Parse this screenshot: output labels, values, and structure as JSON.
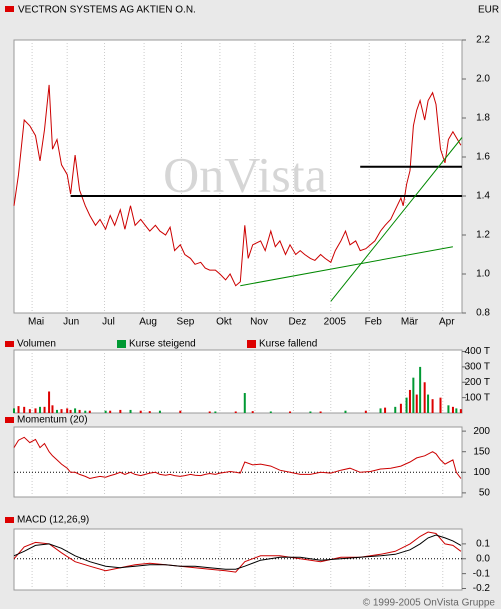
{
  "header": {
    "title": "VECTRON SYSTEMS AG AKTIEN O.N.",
    "currency": "EUR"
  },
  "footer": "© 1999-2005 OnVista Gruppe",
  "chart_data": [
    {
      "type": "line",
      "watermark": "OnVista",
      "color": "#cc0000",
      "xlim": [
        0,
        396
      ],
      "ylim": [
        0.8,
        2.2
      ],
      "yticks": [
        2.2,
        {
          "value": 2.0,
          "label": "2.0"
        },
        1.8,
        1.6,
        1.4,
        1.2,
        {
          "value": 1.0,
          "label": "1.0"
        },
        0.8
      ],
      "xticks": [
        {
          "value": 16,
          "label": "Mai"
        },
        {
          "value": 47,
          "label": "Jun"
        },
        {
          "value": 80,
          "label": "Jul"
        },
        {
          "value": 115,
          "label": "Aug"
        },
        {
          "value": 148,
          "label": "Sep"
        },
        {
          "value": 182,
          "label": "Okt"
        },
        {
          "value": 213,
          "label": "Nov"
        },
        {
          "value": 247,
          "label": "Dez"
        },
        {
          "value": 280,
          "label": "2005"
        },
        {
          "value": 314,
          "label": "Feb"
        },
        {
          "value": 346,
          "label": "Mär"
        },
        {
          "value": 379,
          "label": "Apr"
        }
      ],
      "x": [
        0,
        4,
        9,
        14,
        19,
        23,
        27,
        31,
        34,
        38,
        42,
        47,
        50,
        54,
        58,
        63,
        67,
        72,
        76,
        81,
        85,
        89,
        94,
        98,
        103,
        107,
        112,
        116,
        120,
        125,
        129,
        134,
        138,
        142,
        147,
        151,
        156,
        160,
        165,
        169,
        173,
        178,
        182,
        187,
        191,
        196,
        200,
        204,
        207,
        211,
        218,
        222,
        227,
        231,
        235,
        240,
        244,
        249,
        253,
        257,
        262,
        266,
        271,
        275,
        280,
        284,
        289,
        293,
        297,
        302,
        306,
        311,
        315,
        319,
        324,
        328,
        333,
        337,
        342,
        344,
        347,
        350,
        353,
        356,
        359,
        363,
        366,
        370,
        373,
        377,
        381,
        384,
        388,
        391,
        395
      ],
      "values": [
        1.35,
        1.51,
        1.79,
        1.76,
        1.71,
        1.58,
        1.74,
        1.97,
        1.64,
        1.69,
        1.56,
        1.51,
        1.41,
        1.61,
        1.43,
        1.35,
        1.3,
        1.25,
        1.28,
        1.23,
        1.3,
        1.25,
        1.33,
        1.23,
        1.35,
        1.25,
        1.28,
        1.25,
        1.22,
        1.25,
        1.22,
        1.2,
        1.24,
        1.12,
        1.15,
        1.1,
        1.08,
        1.05,
        1.06,
        1.03,
        1.02,
        1.02,
        1.0,
        0.97,
        1.0,
        0.94,
        0.96,
        1.25,
        1.08,
        1.15,
        1.17,
        1.12,
        1.22,
        1.14,
        1.17,
        1.1,
        1.15,
        1.1,
        1.12,
        1.1,
        1.08,
        1.07,
        1.1,
        1.08,
        1.06,
        1.12,
        1.17,
        1.22,
        1.15,
        1.17,
        1.12,
        1.13,
        1.15,
        1.17,
        1.22,
        1.25,
        1.28,
        1.33,
        1.39,
        1.35,
        1.46,
        1.53,
        1.76,
        1.84,
        1.89,
        1.79,
        1.89,
        1.93,
        1.87,
        1.64,
        1.57,
        1.69,
        1.73,
        1.7,
        1.66
      ],
      "trend_lines": [
        {
          "x": [
            50,
            396
          ],
          "values": [
            1.4,
            1.4
          ],
          "color": "#000000"
        },
        {
          "x": [
            306,
            396
          ],
          "values": [
            1.55,
            1.55
          ],
          "color": "#000000"
        },
        {
          "x": [
            200,
            388
          ],
          "values": [
            0.94,
            1.14
          ],
          "color": "#008800"
        },
        {
          "x": [
            280,
            396
          ],
          "values": [
            0.86,
            1.7
          ],
          "color": "#008800"
        }
      ]
    },
    {
      "type": "bar",
      "title": "Volumen",
      "ylim": [
        0,
        410
      ],
      "yticks": [
        {
          "value": 400,
          "label": "400 T"
        },
        {
          "value": 300,
          "label": "300 T"
        },
        {
          "value": 200,
          "label": "200 T"
        },
        {
          "value": 100,
          "label": "100 T"
        }
      ],
      "series": [
        {
          "name": "Kurse steigend",
          "color": "#009933",
          "x": [
            0,
            23,
            38,
            54,
            63,
            81,
            103,
            129,
            178,
            204,
            227,
            262,
            293,
            324,
            337,
            347,
            353,
            359,
            366,
            384,
            391
          ],
          "values": [
            30,
            40,
            20,
            30,
            15,
            15,
            20,
            15,
            10,
            130,
            10,
            10,
            15,
            30,
            40,
            100,
            230,
            300,
            120,
            50,
            30
          ]
        },
        {
          "name": "Kurse fallend",
          "color": "#dd0000",
          "x": [
            4,
            9,
            14,
            19,
            27,
            31,
            34,
            42,
            47,
            50,
            58,
            67,
            85,
            94,
            112,
            120,
            147,
            173,
            196,
            211,
            244,
            271,
            311,
            328,
            342,
            350,
            356,
            363,
            370,
            377,
            388,
            395
          ],
          "values": [
            45,
            40,
            25,
            30,
            40,
            140,
            50,
            25,
            30,
            20,
            20,
            15,
            15,
            20,
            15,
            12,
            15,
            10,
            10,
            12,
            10,
            10,
            15,
            35,
            60,
            150,
            120,
            200,
            90,
            100,
            40,
            25
          ]
        }
      ]
    },
    {
      "type": "line",
      "title": "Momentum (20)",
      "color": "#cc0000",
      "ylim": [
        40,
        210
      ],
      "yticks": [
        200,
        150,
        100,
        50
      ],
      "refline": 100,
      "x": [
        0,
        4,
        9,
        14,
        19,
        23,
        27,
        31,
        34,
        38,
        42,
        47,
        50,
        54,
        58,
        63,
        67,
        72,
        76,
        81,
        85,
        89,
        94,
        98,
        103,
        107,
        112,
        116,
        120,
        125,
        129,
        134,
        138,
        142,
        147,
        151,
        156,
        160,
        165,
        169,
        173,
        178,
        182,
        187,
        191,
        196,
        200,
        204,
        211,
        218,
        227,
        235,
        244,
        253,
        262,
        271,
        280,
        289,
        297,
        306,
        315,
        324,
        333,
        342,
        350,
        356,
        363,
        370,
        373,
        377,
        381,
        388,
        391,
        395
      ],
      "values": [
        160,
        178,
        185,
        172,
        180,
        160,
        170,
        150,
        140,
        130,
        120,
        110,
        100,
        100,
        95,
        90,
        85,
        88,
        90,
        88,
        92,
        95,
        100,
        95,
        100,
        95,
        92,
        95,
        98,
        100,
        95,
        93,
        95,
        92,
        90,
        92,
        95,
        93,
        92,
        95,
        97,
        95,
        98,
        100,
        102,
        100,
        98,
        125,
        118,
        120,
        115,
        105,
        100,
        95,
        95,
        100,
        98,
        105,
        110,
        100,
        102,
        108,
        110,
        115,
        125,
        135,
        140,
        150,
        145,
        130,
        120,
        130,
        100,
        85
      ]
    },
    {
      "type": "line",
      "title": "MACD (12,26,9)",
      "ylim": [
        -0.21,
        0.2
      ],
      "yticks": [
        0.1,
        {
          "value": 0,
          "label": "0.0"
        },
        -0.1,
        -0.2
      ],
      "refline": 0,
      "x": [
        0,
        9,
        19,
        31,
        42,
        54,
        67,
        81,
        94,
        107,
        120,
        134,
        147,
        160,
        173,
        187,
        196,
        204,
        218,
        235,
        253,
        271,
        289,
        306,
        324,
        337,
        350,
        359,
        366,
        373,
        381,
        388,
        395
      ],
      "series": [
        {
          "color": "#cc0000",
          "values": [
            0.0,
            0.08,
            0.11,
            0.1,
            0.04,
            -0.02,
            -0.05,
            -0.08,
            -0.06,
            -0.04,
            -0.03,
            -0.04,
            -0.05,
            -0.06,
            -0.07,
            -0.08,
            -0.09,
            -0.02,
            0.02,
            0.02,
            0.0,
            -0.02,
            0.01,
            0.01,
            0.03,
            0.05,
            0.1,
            0.15,
            0.18,
            0.17,
            0.1,
            0.09,
            0.05
          ]
        },
        {
          "color": "#000000",
          "values": [
            0.02,
            0.05,
            0.09,
            0.1,
            0.07,
            0.02,
            -0.02,
            -0.05,
            -0.06,
            -0.05,
            -0.04,
            -0.04,
            -0.05,
            -0.05,
            -0.06,
            -0.07,
            -0.07,
            -0.05,
            -0.01,
            0.01,
            0.01,
            -0.01,
            0.0,
            0.01,
            0.02,
            0.03,
            0.06,
            0.1,
            0.14,
            0.16,
            0.14,
            0.12,
            0.09
          ]
        }
      ]
    }
  ]
}
